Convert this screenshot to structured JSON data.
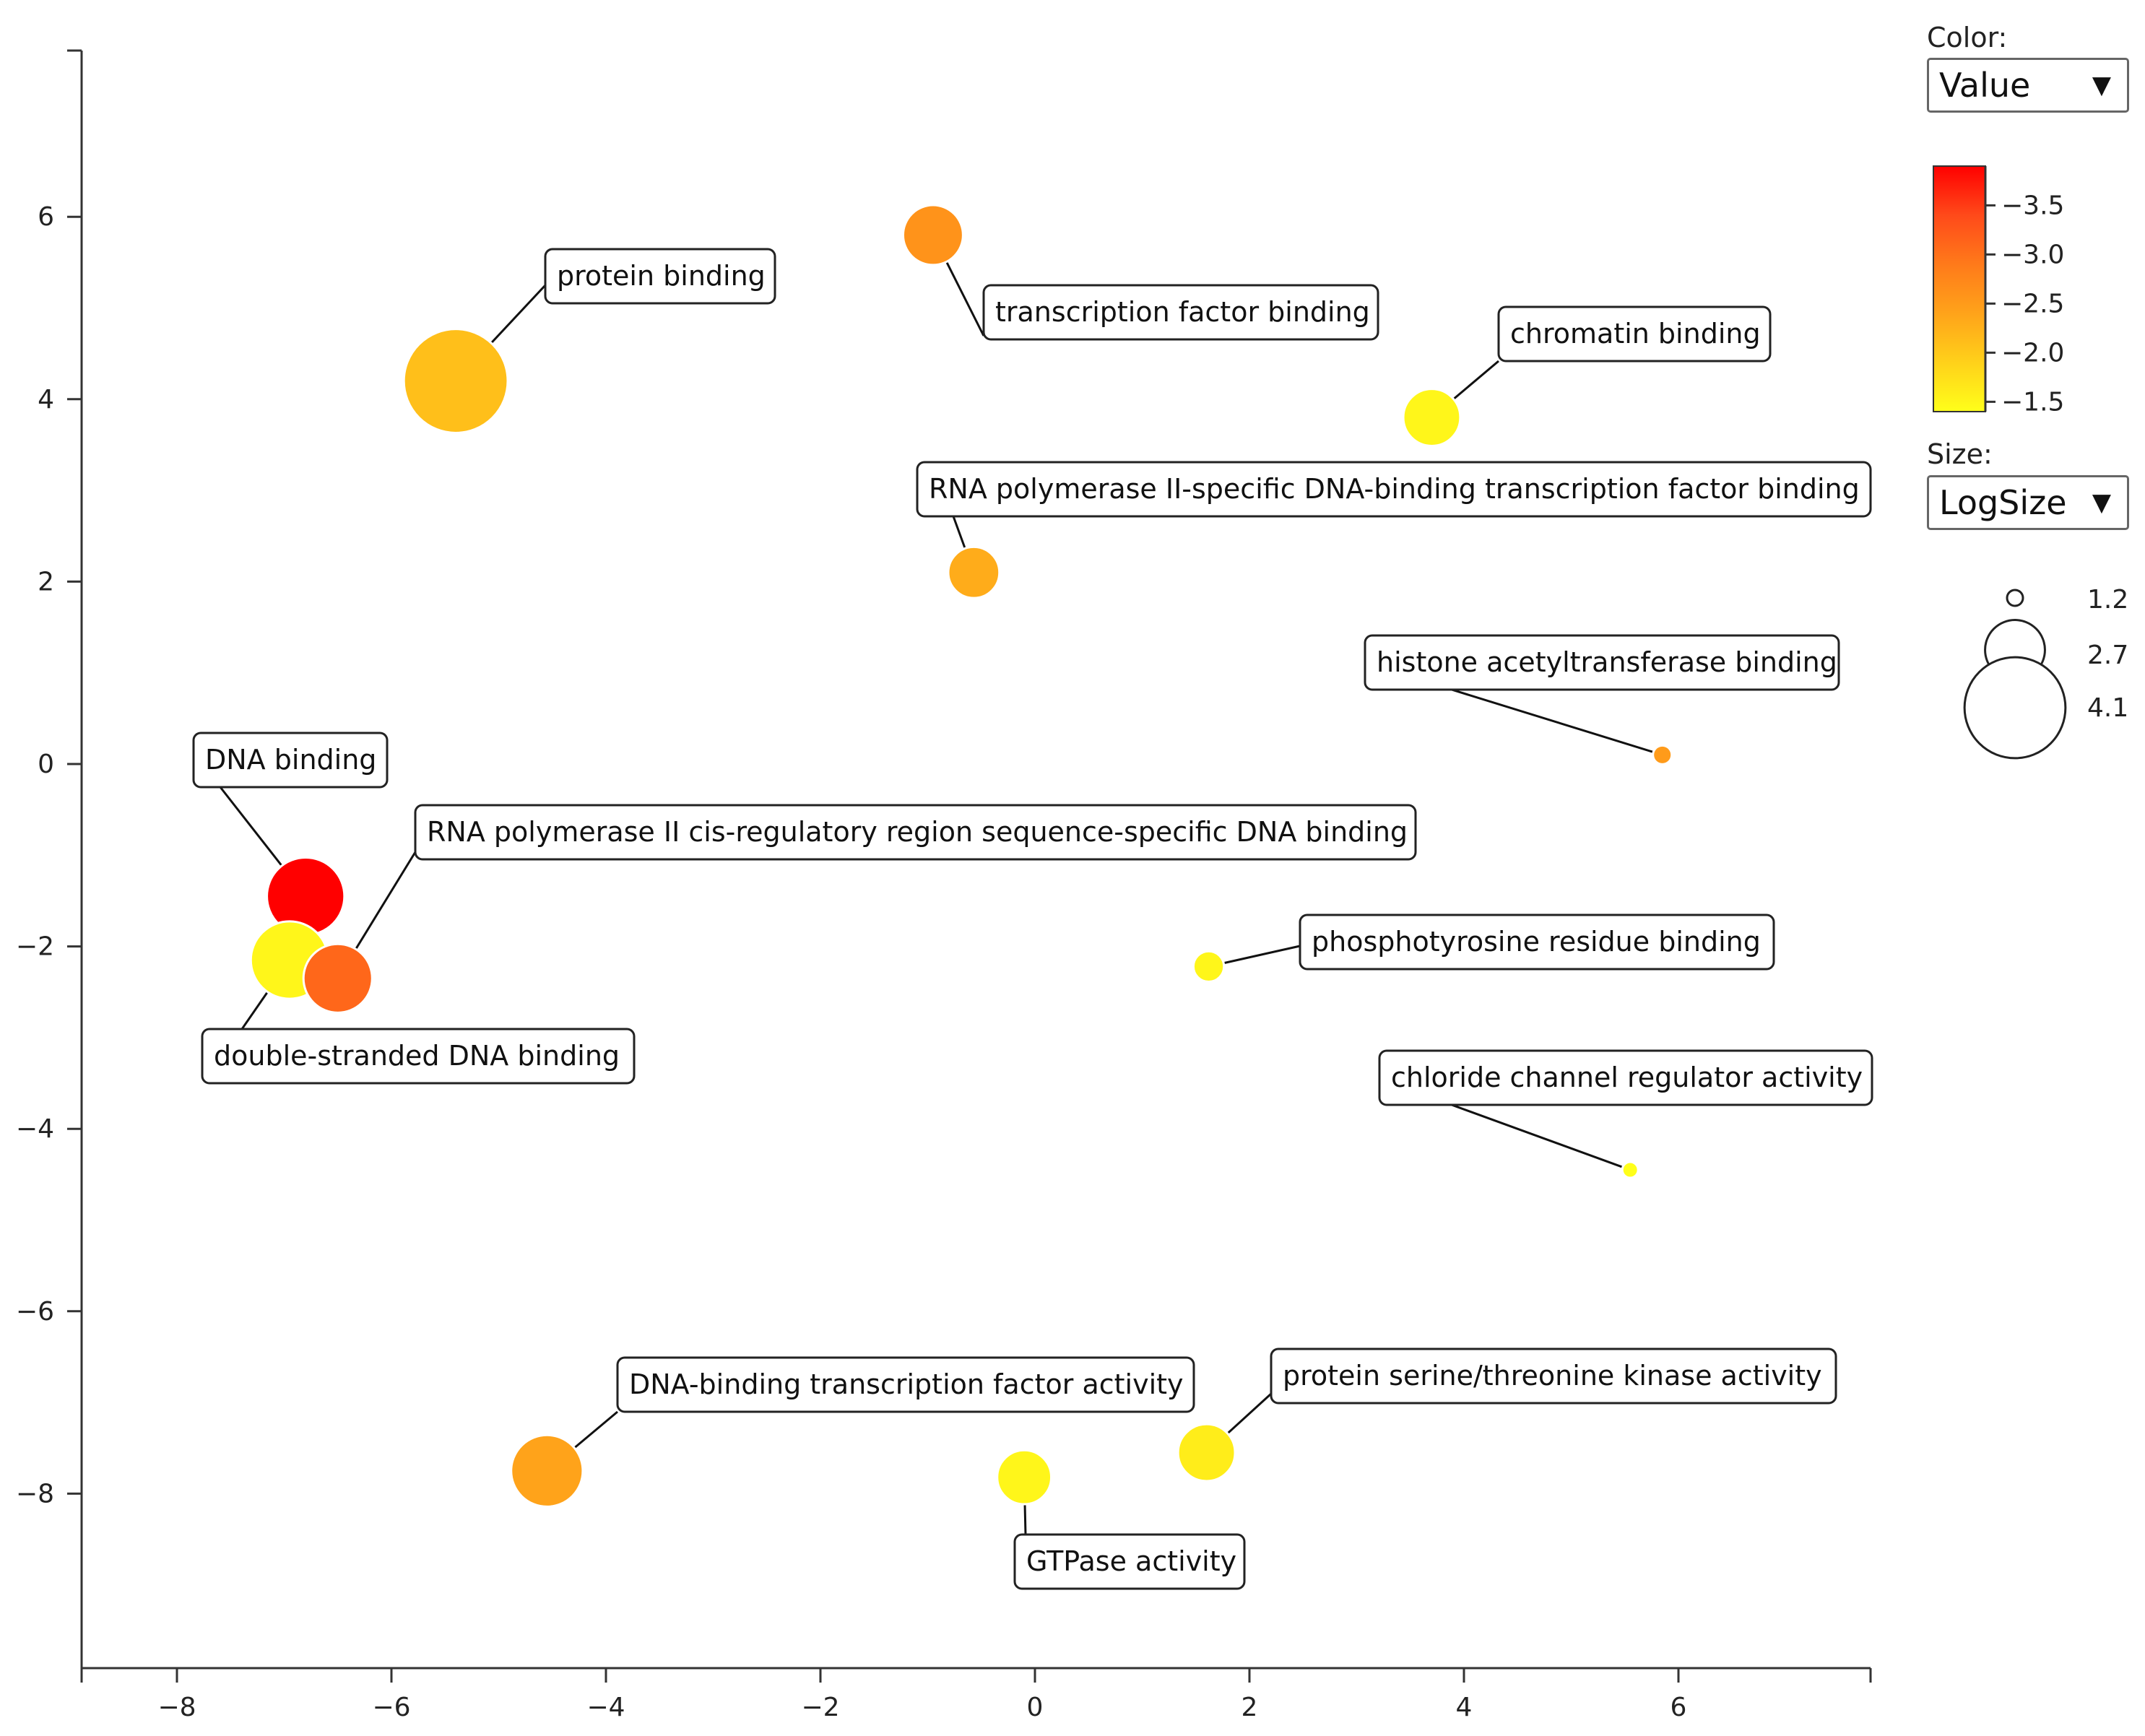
{
  "controls": {
    "color_title": "Color:",
    "color_value": "Value",
    "size_title": "Size:",
    "size_value": "LogSize",
    "dropdown_arrow": "▼"
  },
  "chart_data": {
    "type": "scatter",
    "title": "",
    "xlabel": "",
    "ylabel": "",
    "xlim": [
      -8.9,
      7.8
    ],
    "ylim": [
      -9.8,
      7.9
    ],
    "xticks": [
      -8,
      -6,
      -4,
      -2,
      0,
      2,
      4,
      6
    ],
    "yticks": [
      -8,
      -6,
      -4,
      -2,
      0,
      2,
      4,
      6
    ],
    "x_tick_labels": [
      "−8",
      "−6",
      "−4",
      "−2",
      "0",
      "2",
      "4",
      "6"
    ],
    "y_tick_labels": [
      "−8",
      "−6",
      "−4",
      "−2",
      "0",
      "2",
      "4",
      "6"
    ],
    "color_scale": {
      "stops": [
        "#ffff1a",
        "#ffd11a",
        "#ffa31a",
        "#ff7a1a",
        "#ff4a1a",
        "#ff0000"
      ],
      "range": [
        -1.4,
        -3.9
      ],
      "ticks": [
        -3.5,
        -3.0,
        -2.5,
        -2.0,
        -1.5
      ],
      "tick_labels": [
        "−3.5",
        "−3.0",
        "−2.5",
        "−2.0",
        "−1.5"
      ]
    },
    "size_legend": {
      "values": [
        1.2,
        2.7,
        4.1
      ],
      "labels": [
        "1.2",
        "2.7",
        "4.1"
      ]
    },
    "points": [
      {
        "label": "protein binding",
        "x": -5.4,
        "y": 4.2,
        "value": -2.1,
        "size": 4.2
      },
      {
        "label": "transcription factor binding",
        "x": -0.95,
        "y": 5.8,
        "value": -2.6,
        "size": 2.7
      },
      {
        "label": "chromatin binding",
        "x": 3.7,
        "y": 3.8,
        "value": -1.5,
        "size": 2.6
      },
      {
        "label": "RNA polymerase II-specific DNA-binding transcription factor binding",
        "x": -0.57,
        "y": 2.1,
        "value": -2.3,
        "size": 2.4
      },
      {
        "label": "histone acetyltransferase binding",
        "x": 5.85,
        "y": 0.1,
        "value": -2.5,
        "size": 1.3
      },
      {
        "label": "DNA binding",
        "x": -6.8,
        "y": -1.45,
        "value": -3.9,
        "size": 3.3
      },
      {
        "label": "RNA polymerase II cis-regulatory region sequence-specific DNA binding",
        "x": -6.5,
        "y": -2.35,
        "value": -3.1,
        "size": 3.0
      },
      {
        "label": "double-stranded DNA binding",
        "x": -6.95,
        "y": -2.15,
        "value": -1.5,
        "size": 3.3
      },
      {
        "label": "phosphotyrosine residue binding",
        "x": 1.62,
        "y": -2.22,
        "value": -1.5,
        "size": 1.7
      },
      {
        "label": "chloride channel regulator activity",
        "x": 5.55,
        "y": -4.45,
        "value": -1.4,
        "size": 1.2
      },
      {
        "label": "DNA-binding transcription factor activity",
        "x": -4.55,
        "y": -7.75,
        "value": -2.4,
        "size": 3.1
      },
      {
        "label": "GTPase activity",
        "x": -0.1,
        "y": -7.82,
        "value": -1.5,
        "size": 2.5
      },
      {
        "label": "protein serine/threonine kinase activity",
        "x": 1.6,
        "y": -7.55,
        "value": -1.6,
        "size": 2.6
      }
    ]
  }
}
